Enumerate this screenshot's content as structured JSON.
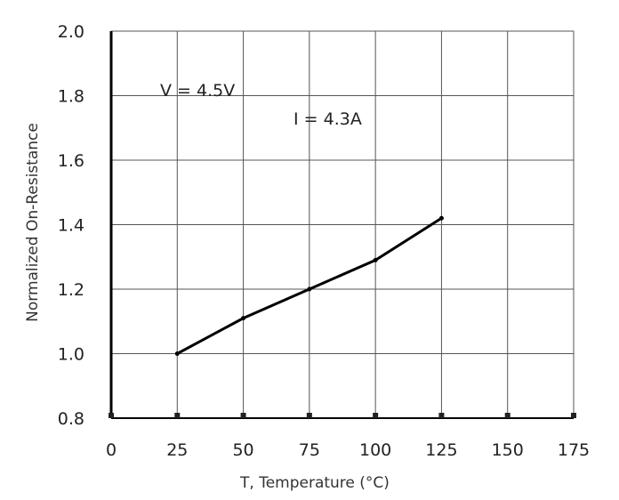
{
  "chart_data": {
    "type": "line",
    "title": "",
    "xlabel": "T, Temperature (°C)",
    "ylabel": "Normalized On-Resistance",
    "xlim": [
      0,
      175
    ],
    "ylim": [
      0.8,
      2.0
    ],
    "x_ticks": [
      0,
      25,
      50,
      75,
      100,
      125,
      150,
      175
    ],
    "y_ticks": [
      0.8,
      1.0,
      1.2,
      1.4,
      1.6,
      1.8,
      2.0
    ],
    "x_tick_labels": [
      "0",
      "25",
      "50",
      "75",
      "100",
      "125",
      "150",
      "175"
    ],
    "y_tick_labels": [
      "0.8",
      "1.0",
      "1.2",
      "1.4",
      "1.6",
      "1.8",
      "2.0"
    ],
    "grid": true,
    "annotations": [
      "V = 4.5V",
      "I = 4.3A"
    ],
    "series": [
      {
        "x": [
          25,
          50,
          75,
          100,
          125
        ],
        "y": [
          1.0,
          1.11,
          1.2,
          1.29,
          1.42
        ]
      }
    ]
  }
}
